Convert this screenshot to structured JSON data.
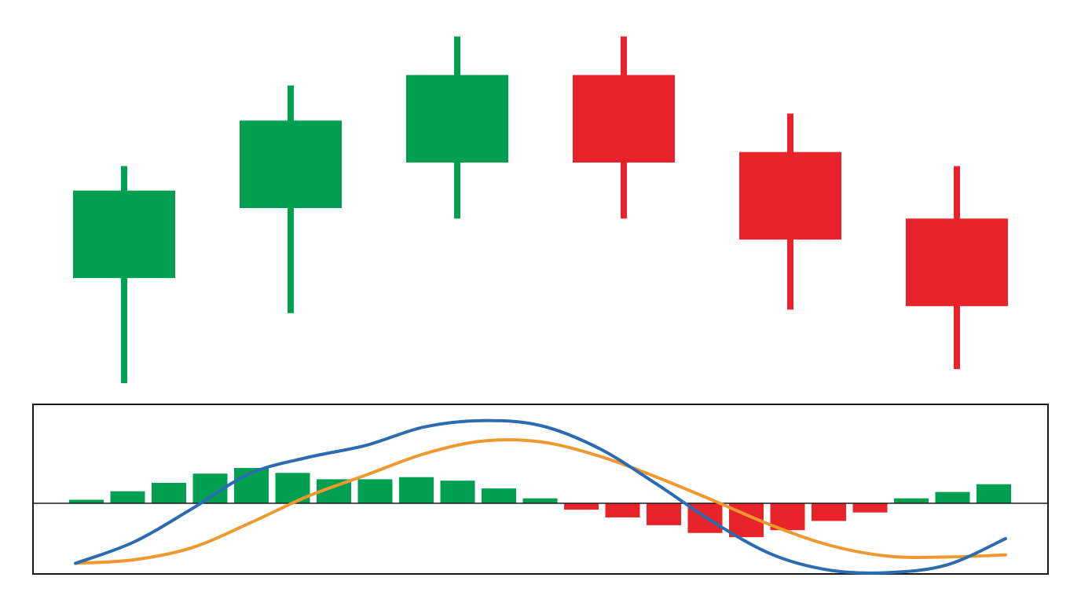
{
  "colors": {
    "bull": "#00a050",
    "bear": "#e8242a",
    "macd_line": "#2a6bb1",
    "signal_line": "#ee9930",
    "frame": "#1a1a1a",
    "zero_line": "#1a1a1a",
    "background": "#ffffff"
  },
  "chart_data": [
    {
      "type": "candlestick",
      "title": "",
      "xlabel": "",
      "ylabel": "",
      "axes_visible": false,
      "grid": false,
      "ylim": [
        0,
        100
      ],
      "candles": [
        {
          "open": 30,
          "close": 55,
          "high": 62,
          "low": 0,
          "direction": "up"
        },
        {
          "open": 50,
          "close": 75,
          "high": 85,
          "low": 20,
          "direction": "up"
        },
        {
          "open": 63,
          "close": 88,
          "high": 99,
          "low": 47,
          "direction": "up"
        },
        {
          "open": 88,
          "close": 63,
          "high": 99,
          "low": 47,
          "direction": "down"
        },
        {
          "open": 66,
          "close": 41,
          "high": 77,
          "low": 21,
          "direction": "down"
        },
        {
          "open": 47,
          "close": 22,
          "high": 62,
          "low": 4,
          "direction": "down"
        }
      ]
    },
    {
      "type": "macd",
      "title": "",
      "xlabel": "",
      "ylabel": "",
      "axes_visible": false,
      "grid": false,
      "ylim": [
        -100,
        140
      ],
      "histogram": [
        5,
        17,
        29,
        42,
        50,
        43,
        34,
        34,
        37,
        32,
        21,
        7,
        -9,
        -20,
        -31,
        -42,
        -48,
        -38,
        -25,
        -13,
        7,
        16,
        27
      ],
      "macd_line": [
        -85,
        -55,
        -8,
        42,
        65,
        82,
        108,
        117,
        110,
        78,
        27,
        -28,
        -73,
        -95,
        -98,
        -87,
        -50
      ],
      "signal_line": [
        -85,
        -80,
        -63,
        -28,
        10,
        40,
        70,
        88,
        87,
        67,
        37,
        3,
        -32,
        -60,
        -75,
        -76,
        -73
      ]
    }
  ]
}
